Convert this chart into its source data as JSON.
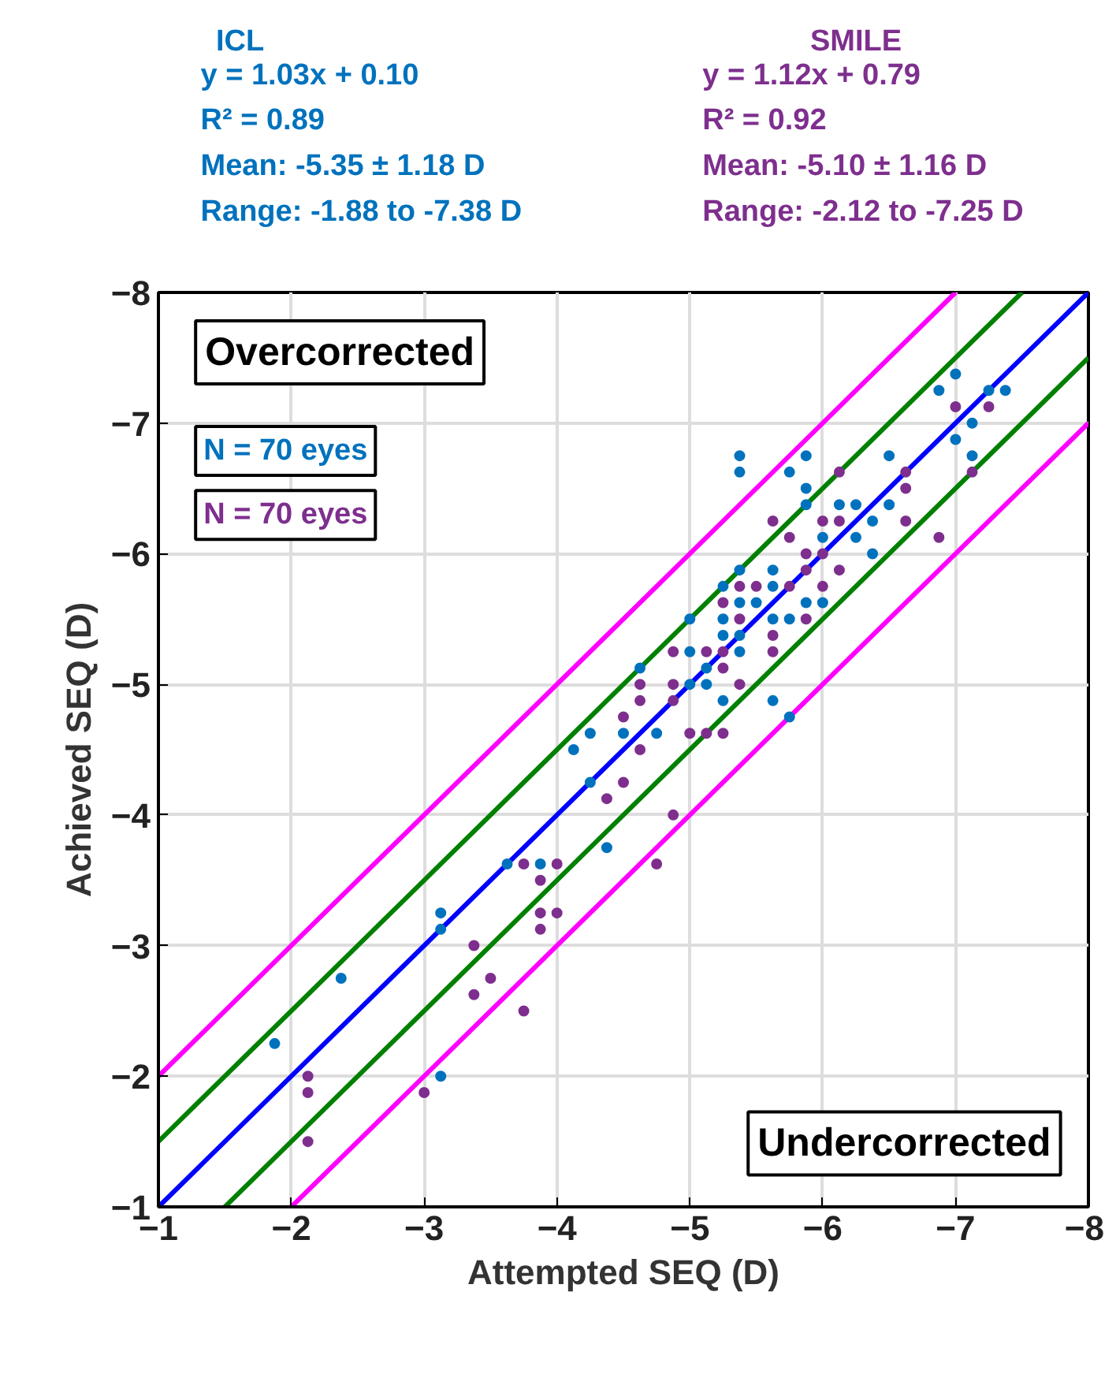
{
  "chart_data": {
    "type": "scatter",
    "xlabel": "Attempted SEQ (D)",
    "ylabel": "Achieved SEQ (D)",
    "xlim": [
      -1,
      -8
    ],
    "ylim": [
      -1,
      -8
    ],
    "xticks": [
      -1,
      -2,
      -3,
      -4,
      -5,
      -6,
      -7,
      -8
    ],
    "yticks": [
      -1,
      -2,
      -3,
      -4,
      -5,
      -6,
      -7,
      -8
    ],
    "grid": true,
    "legend": "top",
    "annotations": [
      "y = 1.03x + 0.10",
      "R² = 0.89",
      "Mean: -5.35 ± 1.18 D",
      "Range: -1.88 to -7.38 D",
      "y = 1.12x + 0.79",
      "R² = 0.92",
      "Mean: -5.10 ± 1.16 D",
      "Range: -2.12 to -7.25 D",
      "Overcorrected",
      "N = 70 eyes",
      "N = 70 eyes",
      "Undercorrected"
    ],
    "series": [
      {
        "type": "line",
        "color": "#ff00ff",
        "x": [
          -1,
          -7
        ],
        "values": [
          -2,
          -8
        ]
      },
      {
        "type": "line",
        "color": "#ff00ff",
        "x": [
          -2,
          -8
        ],
        "values": [
          -1,
          -7
        ]
      },
      {
        "type": "line",
        "color": "#008000",
        "x": [
          -1,
          -7.5
        ],
        "values": [
          -1.5,
          -8
        ]
      },
      {
        "type": "line",
        "color": "#008000",
        "x": [
          -1.5,
          -8
        ],
        "values": [
          -1,
          -7.5
        ]
      },
      {
        "type": "line",
        "color": "#0000ff",
        "x": [
          -1,
          -8
        ],
        "values": [
          -1,
          -8
        ]
      },
      {
        "name": "ICL",
        "color": "#0072bd",
        "marker": "circle",
        "x": [
          -6.875,
          -7,
          -7.25,
          -7.375,
          -7.125,
          -7,
          -7.125,
          -5.375,
          -5.375,
          -5.875,
          -5.75,
          -5.875,
          -5.875,
          -6.5,
          -6.5,
          -6.125,
          -6.25,
          -6.375,
          -6.25,
          -6.375,
          -6,
          -5.375,
          -5.625,
          -5.625,
          -5.25,
          -5.375,
          -5.5,
          -5.875,
          -6,
          -5,
          -5.25,
          -5.625,
          -5.75,
          -5.25,
          -5.375,
          -5,
          -5.375,
          -5.125,
          -5,
          -5.125,
          -5.25,
          -5.625,
          -4.75,
          -5.75,
          -4.625,
          -4.25,
          -4.5,
          -4.125,
          -4.25,
          -4.375,
          -3.625,
          -3.875,
          -1.875,
          -2.375,
          -3.125,
          -3.125,
          -3.125
        ],
        "values": [
          -7.25,
          -7.375,
          -7.25,
          -7.25,
          -7,
          -6.875,
          -6.75,
          -6.75,
          -6.625,
          -6.75,
          -6.625,
          -6.5,
          -6.375,
          -6.75,
          -6.375,
          -6.375,
          -6.375,
          -6.25,
          -6.125,
          -6,
          -6.125,
          -5.875,
          -5.875,
          -5.75,
          -5.75,
          -5.625,
          -5.625,
          -5.625,
          -5.625,
          -5.5,
          -5.5,
          -5.5,
          -5.5,
          -5.375,
          -5.375,
          -5.25,
          -5.25,
          -5.125,
          -5,
          -5,
          -4.875,
          -4.875,
          -4.625,
          -4.75,
          -5.125,
          -4.625,
          -4.625,
          -4.5,
          -4.25,
          -3.75,
          -3.625,
          -3.625,
          -2.25,
          -2.75,
          -2,
          -3.25,
          -3.125
        ]
      },
      {
        "name": "SMILE",
        "color": "#7e2f8e",
        "marker": "circle",
        "x": [
          -7,
          -7.25,
          -7.125,
          -6.125,
          -6.625,
          -6.625,
          -6.625,
          -6.875,
          -6,
          -6.125,
          -5.625,
          -5.75,
          -5.875,
          -6,
          -6.125,
          -5.875,
          -5.375,
          -5.5,
          -5.75,
          -6,
          -5.25,
          -5.375,
          -5.875,
          -5.625,
          -4.875,
          -5.125,
          -5.25,
          -5.625,
          -5.25,
          -4.875,
          -5.375,
          -4.875,
          -5,
          -5.125,
          -5.25,
          -4.625,
          -4.625,
          -4.5,
          -4.625,
          -4.5,
          -4.375,
          -4.875,
          -3.75,
          -4,
          -3.875,
          -4.75,
          -3.875,
          -4,
          -3.875,
          -3.5,
          -3.75,
          -2.125,
          -2.125,
          -2.125,
          -3,
          -3.375,
          -3.375
        ],
        "values": [
          -7.125,
          -7.125,
          -6.625,
          -6.625,
          -6.625,
          -6.5,
          -6.25,
          -6.125,
          -6.25,
          -6.25,
          -6.25,
          -6.125,
          -6,
          -6,
          -5.875,
          -5.875,
          -5.75,
          -5.75,
          -5.75,
          -5.75,
          -5.625,
          -5.5,
          -5.5,
          -5.375,
          -5.25,
          -5.25,
          -5.25,
          -5.25,
          -5.125,
          -5,
          -5,
          -4.875,
          -4.625,
          -4.625,
          -4.625,
          -5,
          -4.875,
          -4.75,
          -4.5,
          -4.25,
          -4.125,
          -4,
          -3.625,
          -3.625,
          -3.5,
          -3.625,
          -3.25,
          -3.25,
          -3.125,
          -2.75,
          -2.5,
          -2,
          -1.875,
          -1.5,
          -1.875,
          -3,
          -2.625
        ]
      }
    ]
  }
}
